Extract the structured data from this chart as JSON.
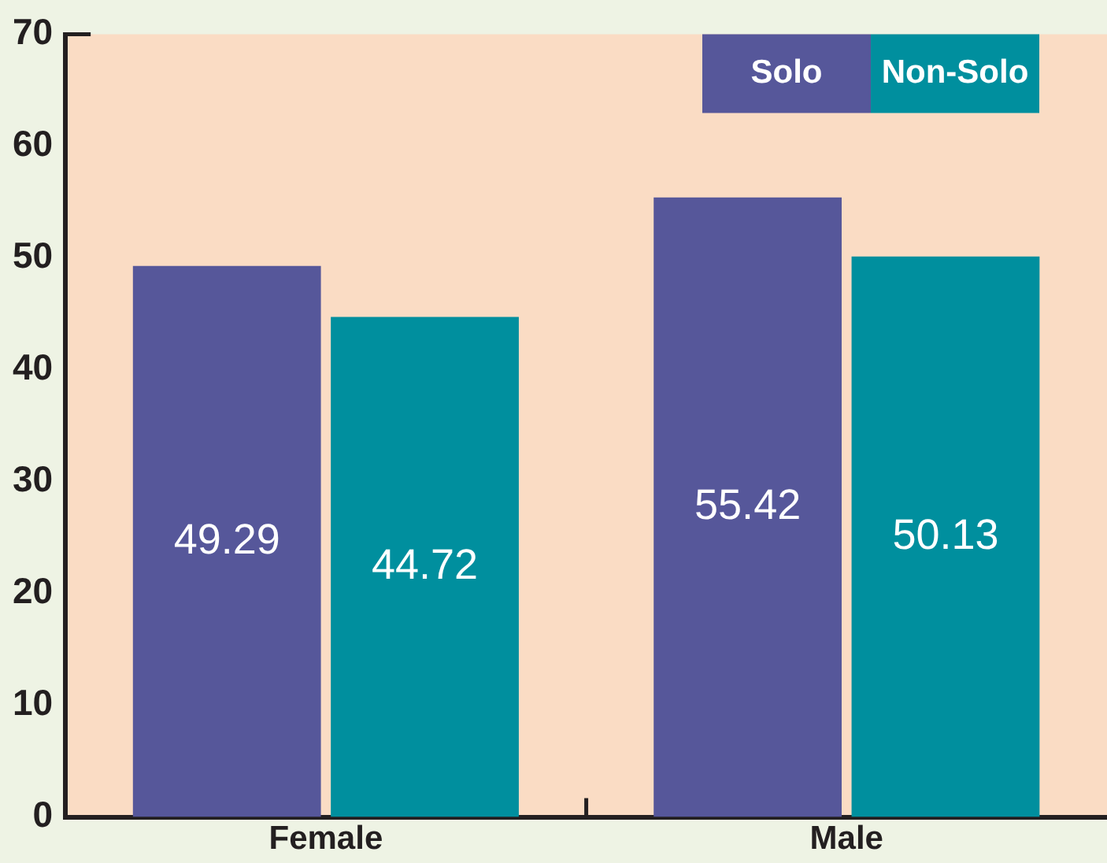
{
  "chart_data": {
    "type": "bar",
    "categories": [
      "Female",
      "Male"
    ],
    "series": [
      {
        "name": "Solo",
        "color": "#56579a",
        "values": [
          49.29,
          55.42
        ]
      },
      {
        "name": "Non-Solo",
        "color": "#008f9e",
        "values": [
          44.72,
          50.13
        ]
      }
    ],
    "ylim": [
      0,
      70
    ],
    "yticks": [
      0,
      10,
      20,
      30,
      40,
      50,
      60,
      70
    ],
    "grid": false,
    "legend": "top right",
    "data_labels": true
  }
}
